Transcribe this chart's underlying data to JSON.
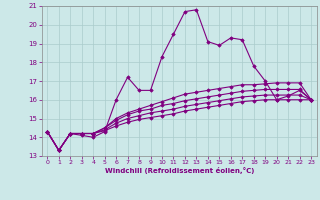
{
  "xlabel": "Windchill (Refroidissement éolien,°C)",
  "background_color": "#cce8e8",
  "grid_color": "#aacccc",
  "line_color": "#800080",
  "xlim": [
    -0.5,
    23.5
  ],
  "ylim": [
    13,
    21
  ],
  "xticks": [
    0,
    1,
    2,
    3,
    4,
    5,
    6,
    7,
    8,
    9,
    10,
    11,
    12,
    13,
    14,
    15,
    16,
    17,
    18,
    19,
    20,
    21,
    22,
    23
  ],
  "yticks": [
    13,
    14,
    15,
    16,
    17,
    18,
    19,
    20,
    21
  ],
  "series": [
    [
      14.3,
      13.3,
      14.2,
      14.1,
      14.0,
      14.3,
      16.0,
      17.2,
      16.5,
      16.5,
      18.3,
      19.5,
      20.7,
      20.8,
      19.1,
      18.9,
      19.3,
      19.2,
      17.8,
      17.0,
      16.0,
      16.2,
      16.5,
      16.0
    ],
    [
      14.3,
      13.3,
      14.2,
      14.2,
      14.2,
      14.5,
      15.0,
      15.3,
      15.5,
      15.7,
      15.9,
      16.1,
      16.3,
      16.4,
      16.5,
      16.6,
      16.7,
      16.8,
      16.8,
      16.85,
      16.9,
      16.9,
      16.9,
      16.0
    ],
    [
      14.3,
      13.3,
      14.2,
      14.2,
      14.2,
      14.5,
      14.9,
      15.2,
      15.4,
      15.5,
      15.7,
      15.8,
      15.95,
      16.05,
      16.15,
      16.25,
      16.35,
      16.45,
      16.5,
      16.55,
      16.55,
      16.55,
      16.55,
      16.0
    ],
    [
      14.3,
      13.3,
      14.2,
      14.2,
      14.2,
      14.4,
      14.75,
      15.0,
      15.15,
      15.3,
      15.4,
      15.5,
      15.65,
      15.75,
      15.85,
      15.95,
      16.05,
      16.15,
      16.2,
      16.25,
      16.25,
      16.25,
      16.25,
      16.0
    ],
    [
      14.3,
      13.3,
      14.2,
      14.2,
      14.2,
      14.35,
      14.6,
      14.8,
      14.95,
      15.05,
      15.15,
      15.25,
      15.4,
      15.5,
      15.6,
      15.7,
      15.8,
      15.9,
      15.95,
      16.0,
      16.0,
      16.0,
      16.0,
      16.0
    ]
  ]
}
